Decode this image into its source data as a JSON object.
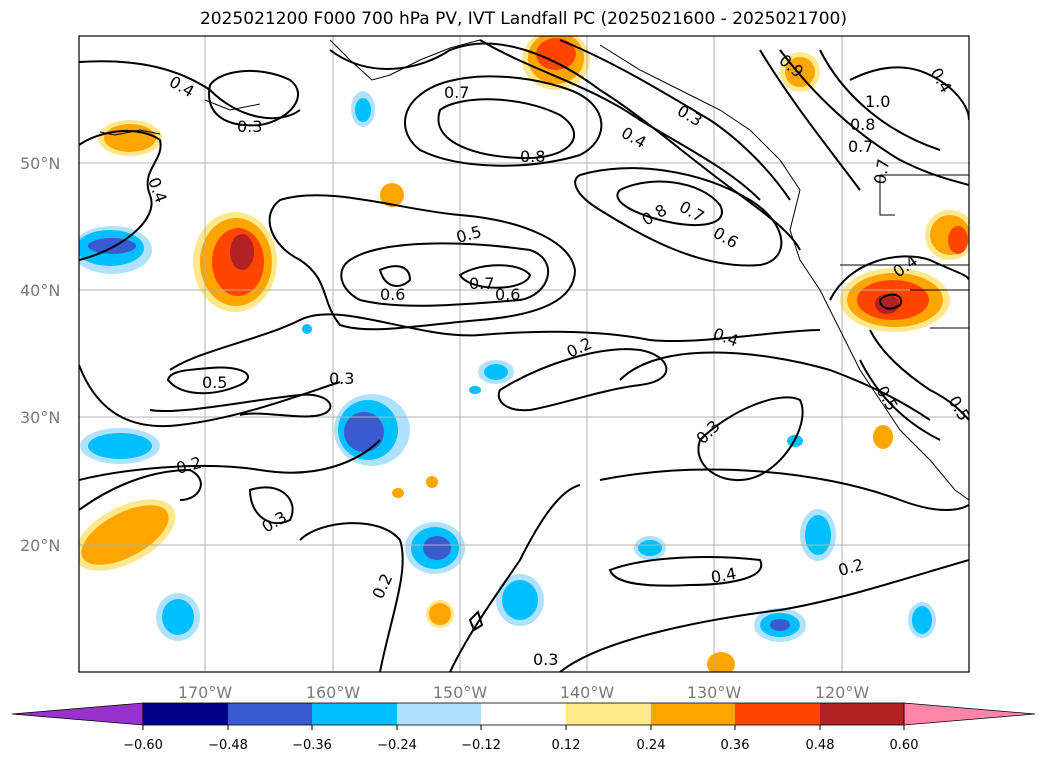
{
  "title": "2025021200 F000 700 hPa PV, IVT Landfall PC (2025021600 - 2025021700)",
  "map": {
    "lat_labels": [
      "50°N",
      "40°N",
      "30°N",
      "20°N"
    ],
    "lon_labels": [
      "170°W",
      "160°W",
      "150°W",
      "140°W",
      "130°W",
      "120°W"
    ],
    "contour_labels": [
      "0.4",
      "0.3",
      "0.4",
      "0.7",
      "0.8",
      "0.9",
      "1.0",
      "0.8",
      "0.7",
      "0.3",
      "0.4",
      "0.5",
      "0.8",
      "0.7",
      "0.6",
      "0.6",
      "0.7",
      "0.6",
      "0.4",
      "0.5",
      "0.3",
      "0.2",
      "0.4",
      "0.3",
      "0.2",
      "0.3",
      "0.2",
      "0.4",
      "0.2",
      "0.3",
      "0.5",
      "0.5",
      "0.4",
      "0.7"
    ]
  },
  "colorbar": {
    "ticks": [
      "−0.60",
      "−0.48",
      "−0.36",
      "−0.24",
      "−0.12",
      "0.12",
      "0.24",
      "0.36",
      "0.48",
      "0.60"
    ],
    "colors": [
      "#9932cc",
      "#00008b",
      "#3a5bd0",
      "#00bfff",
      "#b0e2ff",
      "#ffffff",
      "#ffe78c",
      "#ffa500",
      "#ff4500",
      "#b22222",
      "#ff85a8"
    ]
  }
}
